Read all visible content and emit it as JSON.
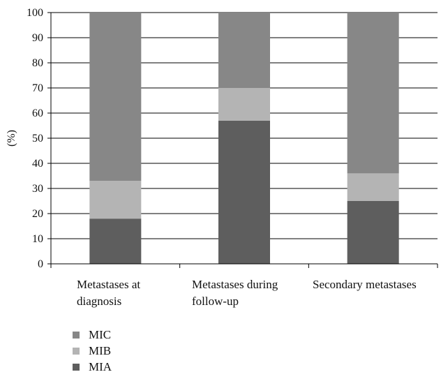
{
  "chart_data": {
    "type": "bar",
    "stacked": true,
    "ylabel": "(%)",
    "ylim": [
      0,
      100
    ],
    "yticks": [
      0,
      10,
      20,
      30,
      40,
      50,
      60,
      70,
      80,
      90,
      100
    ],
    "grid": true,
    "legend_position": "bottom-left",
    "categories": [
      [
        "Metastases at",
        "diagnosis"
      ],
      [
        "Metastases during",
        "follow-up"
      ],
      [
        "Secondary metastases"
      ]
    ],
    "series": [
      {
        "name": "MIA",
        "values": [
          18,
          57,
          25
        ],
        "color": "#5e5e5e"
      },
      {
        "name": "MIB",
        "values": [
          15,
          13,
          11
        ],
        "color": "#b4b4b4"
      },
      {
        "name": "MIC",
        "values": [
          67,
          30,
          64
        ],
        "color": "#878787"
      }
    ],
    "legend_order": [
      "MIC",
      "MIB",
      "MIA"
    ]
  }
}
